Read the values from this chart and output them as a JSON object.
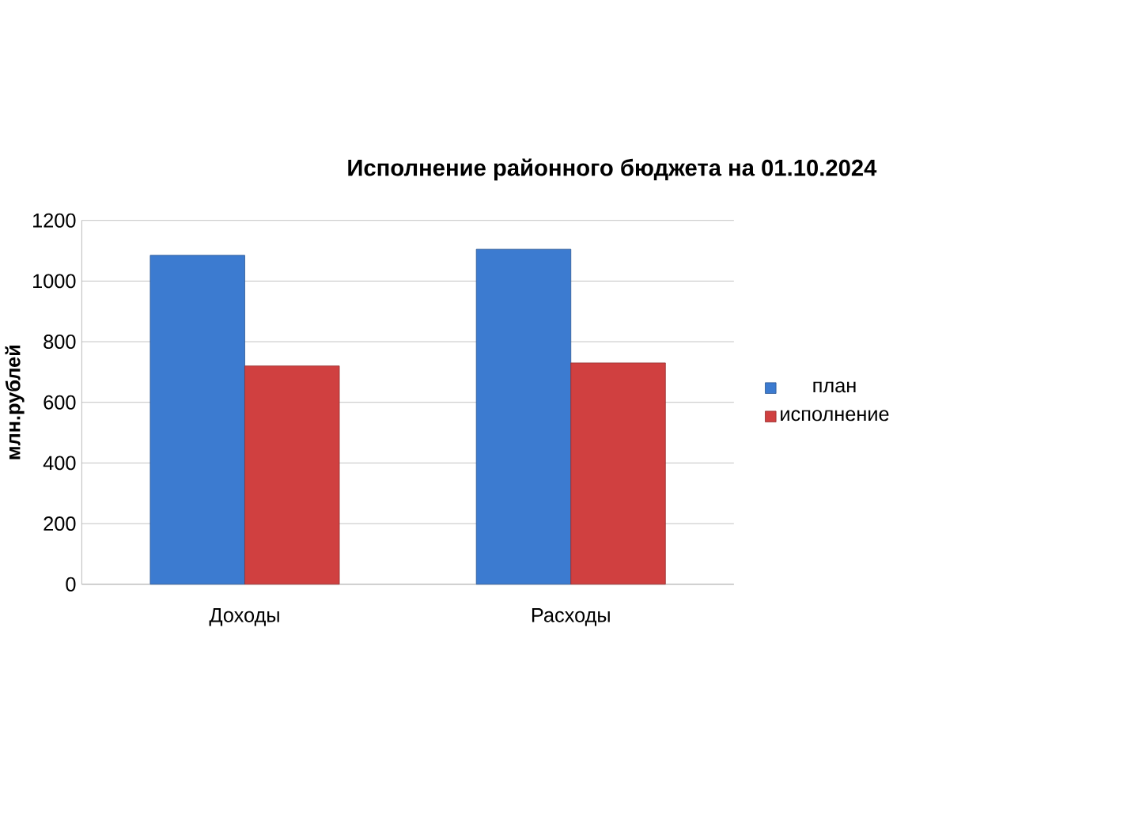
{
  "chart_data": {
    "type": "bar",
    "title": "Исполнение районного бюджета на 01.10.2024",
    "ylabel": "млн.рублей",
    "categories": [
      "Доходы",
      "Расходы"
    ],
    "series": [
      {
        "name": "план",
        "color": "#3c7bd0",
        "values": [
          1085,
          1105
        ]
      },
      {
        "name": "исполнение",
        "color": "#d04040",
        "values": [
          720,
          730
        ]
      }
    ],
    "ylim": [
      0,
      1200
    ],
    "yticks": [
      0,
      200,
      400,
      600,
      800,
      1000,
      1200
    ],
    "grid": "y",
    "legend": "right"
  }
}
